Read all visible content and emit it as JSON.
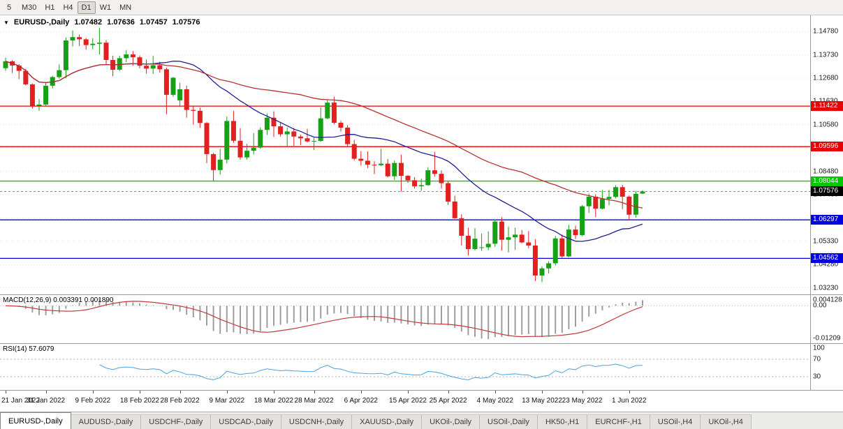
{
  "toolbar": {
    "periods": [
      {
        "label": "5",
        "active": false
      },
      {
        "label": "M30",
        "active": false
      },
      {
        "label": "H1",
        "active": false
      },
      {
        "label": "H4",
        "active": false
      },
      {
        "label": "D1",
        "active": true
      },
      {
        "label": "W1",
        "active": false
      },
      {
        "label": "MN",
        "active": false
      }
    ]
  },
  "chart_data": {
    "type": "candlestick",
    "symbol_header": {
      "dropdown_glyph": "▼",
      "title": "EURUSD-,Daily",
      "open": "1.07482",
      "high": "1.07636",
      "low": "1.07457",
      "close": "1.07576"
    },
    "price_axis": {
      "min": 1.0294,
      "max": 1.1551,
      "labels": [
        "1.14780",
        "1.13730",
        "1.12680",
        "1.11630",
        "1.10580",
        "1.09530",
        "1.08480",
        "1.07430",
        "1.06380",
        "1.05330",
        "1.04280",
        "1.03230"
      ]
    },
    "hlines": [
      {
        "price": 1.11422,
        "label": "1.11422",
        "color": "#e60000"
      },
      {
        "price": 1.09596,
        "label": "1.09596",
        "color": "#e60000"
      },
      {
        "price": 1.08044,
        "label": "1.08044",
        "color": "#00c600"
      },
      {
        "price": 1.06297,
        "label": "1.06297",
        "color": "#0000e0"
      },
      {
        "price": 1.04562,
        "label": "1.04562",
        "color": "#0000e0"
      }
    ],
    "bid_line": {
      "price": 1.07576,
      "label": "1.07576",
      "badge_color": "#000000"
    },
    "colors": {
      "up": "#16a016",
      "down": "#e22020"
    },
    "ma": [
      {
        "name": "ma-fast",
        "period": 20,
        "color": "#1f1f96"
      },
      {
        "name": "ma-slow",
        "period": 45,
        "color": "#b8312f"
      }
    ],
    "candles": [
      [
        1.1313,
        1.136,
        1.1301,
        1.1344
      ],
      [
        1.1344,
        1.1349,
        1.1291,
        1.1325
      ],
      [
        1.1325,
        1.1331,
        1.1264,
        1.1301
      ],
      [
        1.1301,
        1.131,
        1.1235,
        1.124
      ],
      [
        1.124,
        1.1245,
        1.1131,
        1.1144
      ],
      [
        1.1144,
        1.1173,
        1.1121,
        1.1149
      ],
      [
        1.1149,
        1.1248,
        1.1141,
        1.1234
      ],
      [
        1.1234,
        1.1279,
        1.1222,
        1.1273
      ],
      [
        1.1273,
        1.133,
        1.1266,
        1.1304
      ],
      [
        1.1304,
        1.1452,
        1.1267,
        1.1438
      ],
      [
        1.1438,
        1.1483,
        1.1411,
        1.1453
      ],
      [
        1.1453,
        1.1465,
        1.1413,
        1.1443
      ],
      [
        1.1443,
        1.1449,
        1.1396,
        1.1417
      ],
      [
        1.1417,
        1.1448,
        1.1398,
        1.1423
      ],
      [
        1.1423,
        1.1495,
        1.1375,
        1.1428
      ],
      [
        1.1428,
        1.144,
        1.133,
        1.135
      ],
      [
        1.135,
        1.1369,
        1.1277,
        1.1306
      ],
      [
        1.1306,
        1.1369,
        1.13,
        1.1358
      ],
      [
        1.1358,
        1.1395,
        1.134,
        1.1375
      ],
      [
        1.1375,
        1.139,
        1.1324,
        1.1362
      ],
      [
        1.1362,
        1.137,
        1.1312,
        1.1324
      ],
      [
        1.1324,
        1.1352,
        1.1288,
        1.1311
      ],
      [
        1.1311,
        1.1368,
        1.1287,
        1.1326
      ],
      [
        1.1326,
        1.1342,
        1.1293,
        1.1308
      ],
      [
        1.1308,
        1.1315,
        1.1106,
        1.1193
      ],
      [
        1.1193,
        1.1274,
        1.1184,
        1.127
      ],
      [
        1.1168,
        1.1247,
        1.114,
        1.1218
      ],
      [
        1.1218,
        1.1234,
        1.109,
        1.1125
      ],
      [
        1.1125,
        1.1144,
        1.1058,
        1.1121
      ],
      [
        1.1121,
        1.1135,
        1.1045,
        1.1066
      ],
      [
        1.1066,
        1.107,
        1.0886,
        1.0926
      ],
      [
        1.0926,
        1.0931,
        1.0806,
        1.0854
      ],
      [
        1.0854,
        1.095,
        1.0834,
        1.0901
      ],
      [
        1.0901,
        1.1095,
        1.0884,
        1.1075
      ],
      [
        1.1075,
        1.1121,
        1.0976,
        1.0986
      ],
      [
        1.0986,
        1.1043,
        1.0901,
        1.0911
      ],
      [
        1.0911,
        1.0972,
        1.0901,
        1.0941
      ],
      [
        1.0941,
        1.102,
        1.0925,
        1.0955
      ],
      [
        1.0955,
        1.1046,
        1.095,
        1.1035
      ],
      [
        1.1035,
        1.1109,
        1.1012,
        1.109
      ],
      [
        1.109,
        1.1119,
        1.1003,
        1.1051
      ],
      [
        1.1051,
        1.107,
        1.1005,
        1.1015
      ],
      [
        1.1015,
        1.1046,
        1.0963,
        1.1028
      ],
      [
        1.1028,
        1.1044,
        1.0963,
        1.1005
      ],
      [
        1.1005,
        1.1014,
        1.0966,
        1.0997
      ],
      [
        1.0997,
        1.1039,
        1.0979,
        1.0983
      ],
      [
        1.0983,
        1.1,
        1.0944,
        1.0985
      ],
      [
        1.0985,
        1.1137,
        1.0982,
        1.1087
      ],
      [
        1.1087,
        1.1171,
        1.1083,
        1.1158
      ],
      [
        1.1158,
        1.1185,
        1.106,
        1.1067
      ],
      [
        1.1067,
        1.1076,
        1.1027,
        1.1045
      ],
      [
        1.1045,
        1.1056,
        1.096,
        1.0971
      ],
      [
        1.0971,
        1.099,
        1.0898,
        1.0905
      ],
      [
        1.0905,
        1.0939,
        1.0874,
        1.0896
      ],
      [
        1.0896,
        1.0938,
        1.0863,
        1.0878
      ],
      [
        1.0878,
        1.0894,
        1.0836,
        1.0876
      ],
      [
        1.0876,
        1.095,
        1.0872,
        1.0883
      ],
      [
        1.0883,
        1.0904,
        1.0821,
        1.0826
      ],
      [
        1.0826,
        1.0897,
        1.0809,
        1.0886
      ],
      [
        1.0886,
        1.0924,
        1.0757,
        1.0828
      ],
      [
        1.0828,
        1.0832,
        1.0796,
        1.0808
      ],
      [
        1.0808,
        1.0822,
        1.077,
        1.0781
      ],
      [
        1.0781,
        1.0815,
        1.0761,
        1.0786
      ],
      [
        1.0786,
        1.0867,
        1.0783,
        1.0853
      ],
      [
        1.0853,
        1.0936,
        1.0824,
        1.0837
      ],
      [
        1.0837,
        1.0852,
        1.077,
        1.0795
      ],
      [
        1.0795,
        1.0803,
        1.0697,
        1.0712
      ],
      [
        1.0712,
        1.0738,
        1.0635,
        1.0637
      ],
      [
        1.0637,
        1.0655,
        1.0514,
        1.0558
      ],
      [
        1.0558,
        1.0594,
        1.047,
        1.0498
      ],
      [
        1.0498,
        1.0592,
        1.0492,
        1.0545
      ],
      [
        1.0505,
        1.0568,
        1.049,
        1.0506
      ],
      [
        1.0506,
        1.0578,
        1.0493,
        1.0522
      ],
      [
        1.0522,
        1.0632,
        1.0508,
        1.0622
      ],
      [
        1.0622,
        1.0642,
        1.0492,
        1.054
      ],
      [
        1.054,
        1.0599,
        1.0483,
        1.0551
      ],
      [
        1.0551,
        1.0594,
        1.0495,
        1.0563
      ],
      [
        1.0563,
        1.0584,
        1.0524,
        1.0528
      ],
      [
        1.0528,
        1.0579,
        1.0502,
        1.0514
      ],
      [
        1.0514,
        1.0542,
        1.0354,
        1.0379
      ],
      [
        1.0379,
        1.042,
        1.0349,
        1.0411
      ],
      [
        1.0411,
        1.0443,
        1.0388,
        1.0434
      ],
      [
        1.0434,
        1.0557,
        1.0424,
        1.0546
      ],
      [
        1.0546,
        1.0564,
        1.0459,
        1.0465
      ],
      [
        1.0465,
        1.0607,
        1.0462,
        1.0586
      ],
      [
        1.0586,
        1.0604,
        1.0543,
        1.0561
      ],
      [
        1.0561,
        1.0697,
        1.0556,
        1.0691
      ],
      [
        1.0691,
        1.0748,
        1.0661,
        1.0734
      ],
      [
        1.0734,
        1.0745,
        1.0642,
        1.068
      ],
      [
        1.068,
        1.0764,
        1.0677,
        1.0724
      ],
      [
        1.0724,
        1.0765,
        1.0696,
        1.0733
      ],
      [
        1.0733,
        1.0786,
        1.0726,
        1.0777
      ],
      [
        1.0777,
        1.0787,
        1.0678,
        1.0734
      ],
      [
        1.0734,
        1.0739,
        1.0627,
        1.0653
      ],
      [
        1.0653,
        1.076,
        1.064,
        1.0747
      ],
      [
        1.07482,
        1.07636,
        1.07457,
        1.07576
      ]
    ],
    "x_ticks": [
      {
        "index": 0,
        "label": "21 Jan 2022"
      },
      {
        "index": 6,
        "label": "31 Jan 2022"
      },
      {
        "index": 13,
        "label": "9 Feb 2022"
      },
      {
        "index": 20,
        "label": "18 Feb 2022"
      },
      {
        "index": 26,
        "label": "28 Feb 2022"
      },
      {
        "index": 33,
        "label": "9 Mar 2022"
      },
      {
        "index": 40,
        "label": "18 Mar 2022"
      },
      {
        "index": 46,
        "label": "28 Mar 2022"
      },
      {
        "index": 53,
        "label": "6 Apr 2022"
      },
      {
        "index": 60,
        "label": "15 Apr 2022"
      },
      {
        "index": 66,
        "label": "25 Apr 2022"
      },
      {
        "index": 73,
        "label": "4 May 2022"
      },
      {
        "index": 80,
        "label": "13 May 2022"
      },
      {
        "index": 86,
        "label": "23 May 2022"
      },
      {
        "index": 93,
        "label": "1 Jun 2022"
      }
    ],
    "macd": {
      "header": "MACD(12,26,9) 0.003391 0.001890",
      "fast": 12,
      "slow": 26,
      "signal": 9,
      "axis_labels": [
        "0.004128",
        "0.00",
        "-0.01209"
      ],
      "hist_color": "#9e9e9e",
      "signal_color": "#c23b3b"
    },
    "rsi": {
      "header": "RSI(14) 57.6079",
      "period": 14,
      "levels": [
        70,
        30
      ],
      "axis_labels": [
        "100",
        "70",
        "30"
      ],
      "color": "#4aa3df"
    }
  },
  "tabs": [
    {
      "label": "EURUSD-,Daily",
      "active": true
    },
    {
      "label": "AUDUSD-,Daily",
      "active": false
    },
    {
      "label": "USDCHF-,Daily",
      "active": false
    },
    {
      "label": "USDCAD-,Daily",
      "active": false
    },
    {
      "label": "USDCNH-,Daily",
      "active": false
    },
    {
      "label": "XAUUSD-,Daily",
      "active": false
    },
    {
      "label": "UKOil-,Daily",
      "active": false
    },
    {
      "label": "USOil-,Daily",
      "active": false
    },
    {
      "label": "HK50-,H1",
      "active": false
    },
    {
      "label": "EURCHF-,H1",
      "active": false
    },
    {
      "label": "USOil-,H4",
      "active": false
    },
    {
      "label": "UKOil-,H4",
      "active": false
    }
  ]
}
